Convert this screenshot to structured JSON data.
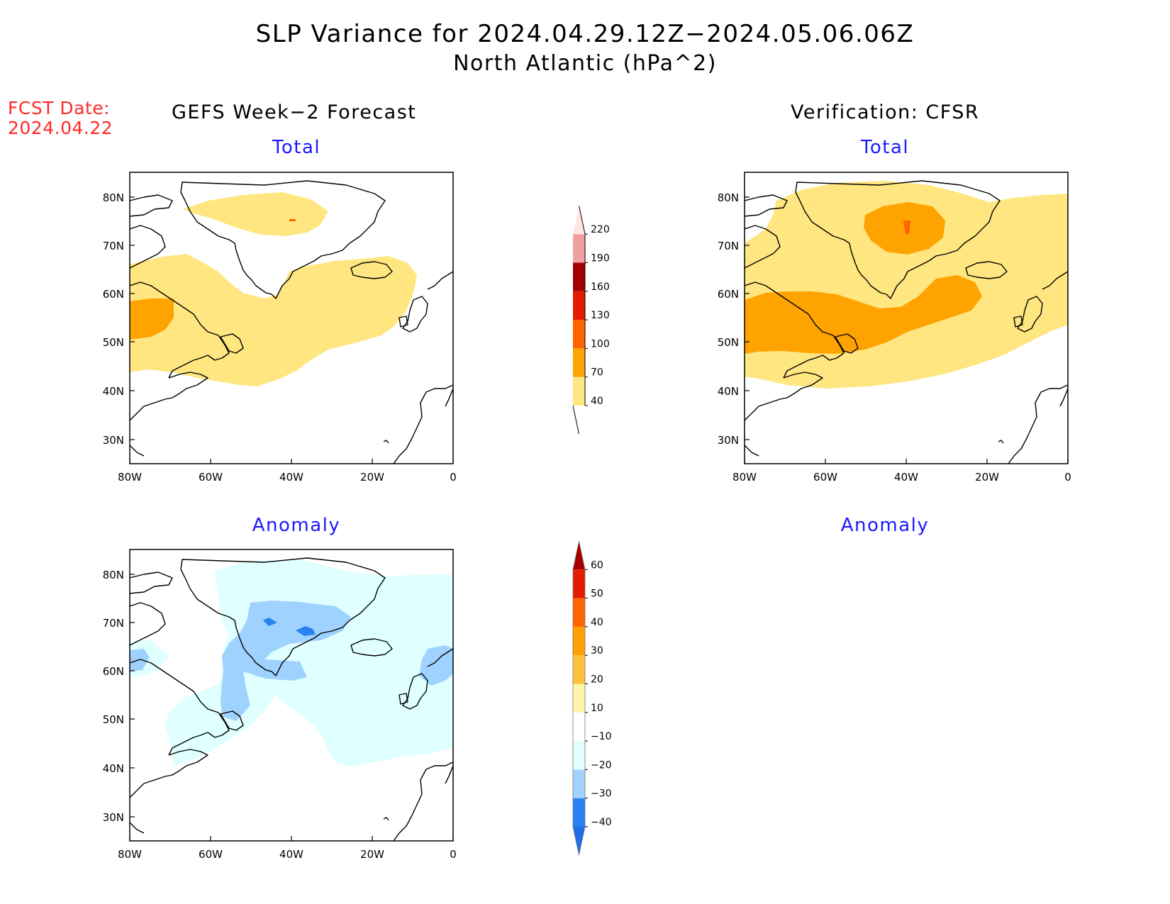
{
  "title": "SLP Variance for 2024.04.29.12Z−2024.05.06.06Z",
  "subtitle": "North Atlantic (hPa^2)",
  "forecast_date": {
    "label": "FCST Date:",
    "value": "2024.04.22"
  },
  "columns": {
    "left": "GEFS Week−2 Forecast",
    "right": "Verification: CFSR"
  },
  "panels": {
    "top_left": "Total",
    "top_right": "Total",
    "bottom_left": "Anomaly",
    "bottom_right": "Anomaly"
  },
  "axes": {
    "lon_ticks": [
      "80W",
      "60W",
      "40W",
      "20W",
      "0"
    ],
    "lat_ticks": [
      "80N",
      "70N",
      "60N",
      "50N",
      "40N",
      "30N"
    ]
  },
  "colors": {
    "land": "#ffffff",
    "coast": "#000000",
    "total_40": "#ffe680",
    "total_70": "#ffa300",
    "total_100": "#ff6400",
    "total_130": "#e51b00",
    "total_160": "#a50000",
    "total_190": "#f0a0a0",
    "total_220": "#ffe6e6",
    "anom_m10": "#e0ffff",
    "anom_m20": "#a0d2ff",
    "anom_m30": "#2882f0",
    "anom_m40": "#1e6eeb"
  },
  "total_colorbar": {
    "levels": [
      "40",
      "70",
      "100",
      "130",
      "160",
      "190",
      "220"
    ],
    "colors": [
      "#ffe680",
      "#ffa300",
      "#ff6400",
      "#e51b00",
      "#a50000",
      "#f0a0a0",
      "#ffe6e6"
    ]
  },
  "anomaly_colorbar": {
    "levels": [
      "−40",
      "−30",
      "−20",
      "−10",
      "10",
      "20",
      "30",
      "40",
      "50",
      "60"
    ],
    "colors": [
      "#1e6eeb",
      "#2882f0",
      "#a0d2ff",
      "#e0ffff",
      "#ffffff",
      "#fff5aa",
      "#ffc03c",
      "#ffa000",
      "#ff6400",
      "#e51b00",
      "#a50000"
    ]
  }
}
